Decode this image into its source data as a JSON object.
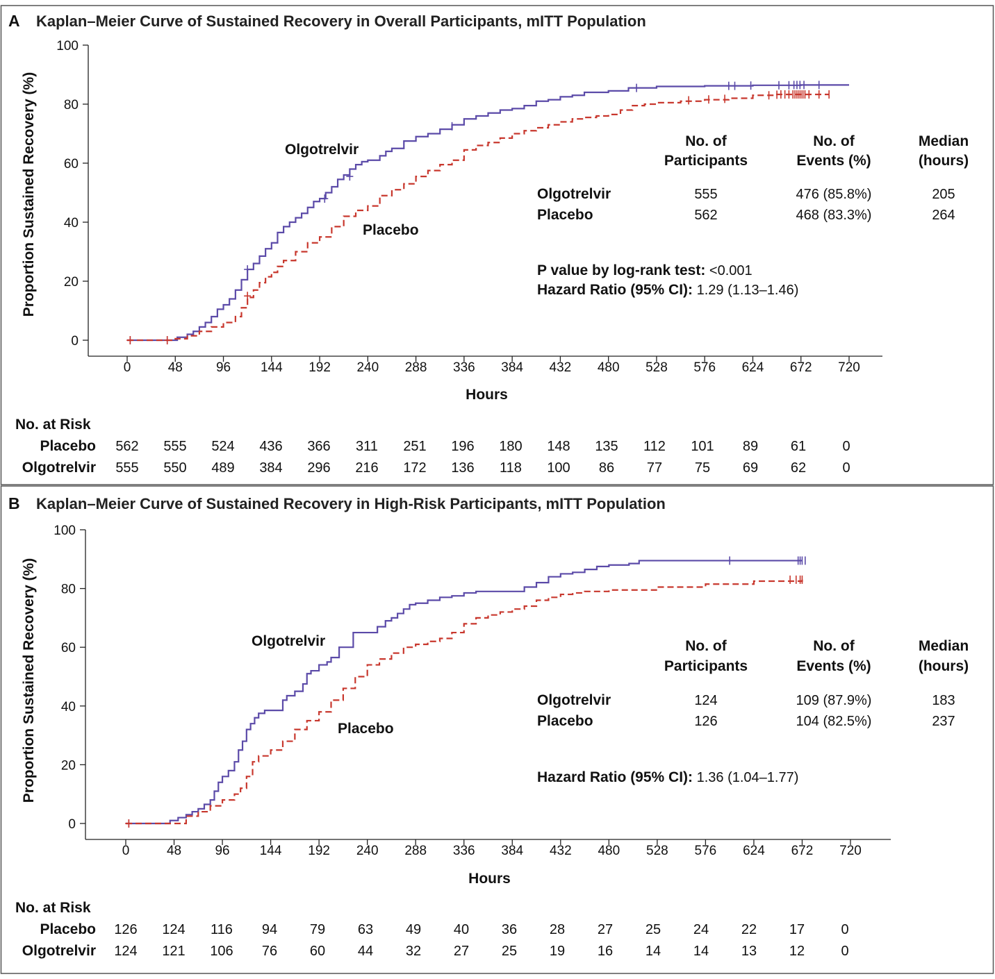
{
  "colors": {
    "olgotrelvir": "#5b4aa8",
    "placebo": "#c8372d",
    "frame": "#555555"
  },
  "chart_data": [
    {
      "type": "line",
      "panel_letter": "A",
      "title": "Kaplan–Meier Curve of Sustained Recovery in Overall Participants, mITT Population",
      "xlabel": "Hours",
      "ylabel": "Proportion Sustained Recovery (%)",
      "xlim": [
        0,
        720
      ],
      "ylim": [
        0,
        100
      ],
      "xticks": [
        0,
        48,
        96,
        144,
        192,
        240,
        288,
        336,
        384,
        432,
        480,
        528,
        576,
        624,
        672,
        720
      ],
      "yticks": [
        0,
        20,
        40,
        60,
        80,
        100
      ],
      "grid": false,
      "series": [
        {
          "name": "Olgotrelvir",
          "style": "solid",
          "x": [
            0,
            40,
            50,
            60,
            66,
            72,
            78,
            84,
            90,
            96,
            102,
            108,
            114,
            120,
            126,
            132,
            138,
            144,
            150,
            156,
            162,
            168,
            174,
            180,
            186,
            192,
            198,
            204,
            210,
            216,
            222,
            228,
            234,
            240,
            252,
            258,
            264,
            276,
            288,
            300,
            312,
            324,
            336,
            348,
            360,
            372,
            384,
            396,
            408,
            420,
            432,
            444,
            456,
            480,
            500,
            528,
            576,
            624,
            672,
            720
          ],
          "y": [
            0,
            0,
            1,
            2,
            3,
            4.5,
            6,
            8,
            10.5,
            12,
            14,
            17,
            20.5,
            24,
            26,
            28.5,
            31,
            33,
            36.5,
            38.5,
            40,
            41.5,
            43,
            45,
            47,
            48,
            50,
            52,
            54.5,
            56,
            58,
            59.5,
            60.5,
            61,
            62.5,
            64,
            65,
            67.5,
            69,
            70,
            71.5,
            73,
            75,
            76,
            77,
            78,
            78.5,
            79.5,
            81,
            81.5,
            82.5,
            83,
            84,
            84.5,
            85.5,
            86,
            86.2,
            86.4,
            86.5,
            86.5
          ],
          "censor_x": [
            3,
            40,
            120,
            197,
            222,
            324,
            508,
            600,
            606,
            622,
            650,
            660,
            665,
            668,
            671,
            675,
            690
          ],
          "censor_y": [
            0,
            0,
            24,
            48,
            55.5,
            72.5,
            85.5,
            86.2,
            86.2,
            86.3,
            86.4,
            86.4,
            86.5,
            86.5,
            86.5,
            86.5,
            86.5
          ]
        },
        {
          "name": "Placebo",
          "style": "dashed",
          "x": [
            0,
            40,
            48,
            60,
            72,
            84,
            96,
            108,
            114,
            120,
            126,
            132,
            138,
            144,
            150,
            156,
            168,
            180,
            192,
            204,
            216,
            228,
            240,
            252,
            264,
            276,
            288,
            300,
            312,
            324,
            336,
            348,
            360,
            372,
            384,
            396,
            408,
            420,
            432,
            444,
            456,
            468,
            480,
            492,
            504,
            516,
            528,
            552,
            576,
            600,
            624,
            648,
            672,
            700
          ],
          "y": [
            0,
            0,
            0.5,
            1.5,
            3,
            4.5,
            6,
            8,
            11,
            14.5,
            17,
            19.5,
            21.5,
            23,
            25,
            27,
            30,
            33,
            35,
            38.5,
            42,
            44,
            45.5,
            49,
            51,
            53,
            55.5,
            57.5,
            59.5,
            61,
            64.5,
            66,
            67,
            68.5,
            70,
            71,
            72,
            73,
            74,
            75,
            75.5,
            76,
            76.5,
            78,
            79.5,
            80,
            80.5,
            81,
            81.5,
            82,
            83,
            83.3,
            83.3,
            83.3
          ],
          "censor_x": [
            3,
            40,
            120,
            560,
            580,
            596,
            640,
            648,
            652,
            656,
            660,
            664,
            666,
            668,
            670,
            672,
            674,
            676,
            680,
            690,
            700
          ],
          "censor_y": [
            0,
            0,
            15,
            81.3,
            81.6,
            81.8,
            83,
            83.2,
            83.3,
            83.3,
            83.3,
            83.3,
            83.3,
            83.3,
            83.3,
            83.3,
            83.3,
            83.3,
            83.3,
            83.3,
            83.3
          ]
        }
      ],
      "curve_labels": {
        "olgotrelvir": "Olgotrelvir",
        "placebo": "Placebo"
      },
      "summary_table": {
        "headers": [
          "No. of\nParticipants",
          "No. of\nEvents (%)",
          "Median\n(hours)"
        ],
        "rows": [
          {
            "group": "Olgotrelvir",
            "participants": "555",
            "events": "476 (85.8%)",
            "median": "205"
          },
          {
            "group": "Placebo",
            "participants": "562",
            "events": "468 (83.3%)",
            "median": "264"
          }
        ]
      },
      "stats": [
        {
          "label": "P value by log-rank test:",
          "value": "<0.001"
        },
        {
          "label": "Hazard Ratio (95% CI):",
          "value": "1.29 (1.13–1.46)"
        }
      ],
      "risk_table": {
        "title": "No. at Risk",
        "rows": [
          {
            "group": "Placebo",
            "values": [
              "562",
              "555",
              "524",
              "436",
              "366",
              "311",
              "251",
              "196",
              "180",
              "148",
              "135",
              "112",
              "101",
              "89",
              "61",
              "0"
            ]
          },
          {
            "group": "Olgotrelvir",
            "values": [
              "555",
              "550",
              "489",
              "384",
              "296",
              "216",
              "172",
              "136",
              "118",
              "100",
              "86",
              "77",
              "75",
              "69",
              "62",
              "0"
            ]
          }
        ]
      }
    },
    {
      "type": "line",
      "panel_letter": "B",
      "title": "Kaplan–Meier Curve of Sustained Recovery in High-Risk Participants, mITT Population",
      "xlabel": "Hours",
      "ylabel": "Proportion Sustained Recovery (%)",
      "xlim": [
        0,
        720
      ],
      "ylim": [
        0,
        100
      ],
      "xticks": [
        0,
        48,
        96,
        144,
        192,
        240,
        288,
        336,
        384,
        432,
        480,
        528,
        576,
        624,
        672,
        720
      ],
      "yticks": [
        0,
        20,
        40,
        60,
        80,
        100
      ],
      "grid": false,
      "series": [
        {
          "name": "Olgotrelvir",
          "style": "solid",
          "x": [
            0,
            36,
            44,
            52,
            60,
            66,
            72,
            78,
            84,
            88,
            92,
            96,
            102,
            108,
            112,
            116,
            120,
            124,
            128,
            132,
            138,
            144,
            156,
            160,
            168,
            176,
            180,
            184,
            192,
            200,
            204,
            212,
            216,
            226,
            232,
            240,
            250,
            258,
            264,
            270,
            276,
            282,
            288,
            300,
            312,
            324,
            336,
            348,
            360,
            372,
            384,
            396,
            408,
            420,
            432,
            444,
            456,
            468,
            480,
            500,
            510,
            528,
            576,
            624,
            672
          ],
          "y": [
            0,
            0,
            1,
            2,
            3,
            4,
            5,
            6.5,
            8,
            11,
            14,
            16,
            18,
            21,
            25,
            28,
            32,
            34,
            36,
            37.5,
            38.5,
            38.5,
            42,
            43.5,
            45,
            47.5,
            51,
            52,
            54,
            55,
            56.5,
            60,
            60,
            65,
            65,
            65,
            67,
            69,
            70,
            71.5,
            73,
            74.5,
            75,
            76,
            77,
            77.5,
            78.5,
            79,
            79,
            79,
            79,
            80.5,
            82,
            84,
            85,
            85.5,
            86.5,
            87.5,
            88,
            88.5,
            89.5,
            89.5,
            89.5,
            89.5,
            89.5
          ],
          "censor_x": [
            3,
            600,
            668,
            670,
            672,
            675
          ],
          "censor_y": [
            0,
            89.5,
            89.5,
            89.5,
            89.5,
            89.5
          ]
        },
        {
          "name": "Placebo",
          "style": "dashed",
          "x": [
            0,
            48,
            60,
            72,
            84,
            96,
            108,
            114,
            120,
            126,
            132,
            144,
            156,
            168,
            180,
            192,
            204,
            216,
            228,
            240,
            252,
            264,
            276,
            288,
            300,
            312,
            324,
            336,
            348,
            360,
            372,
            384,
            396,
            408,
            420,
            432,
            444,
            456,
            468,
            480,
            500,
            528,
            576,
            624,
            672
          ],
          "y": [
            0,
            0,
            2.5,
            4,
            6,
            8,
            10,
            12,
            16,
            21,
            23,
            25,
            28,
            32,
            35,
            38,
            42,
            46,
            50,
            54,
            56,
            58,
            60,
            61,
            62,
            63,
            65,
            68,
            70,
            71,
            72,
            73,
            74,
            76,
            77,
            78,
            78.5,
            79,
            79,
            79.5,
            79.5,
            80.5,
            81.5,
            82.5,
            83
          ],
          "censor_x": [
            3,
            660,
            666,
            670,
            672
          ],
          "censor_y": [
            0,
            83,
            83,
            83,
            83
          ]
        }
      ],
      "curve_labels": {
        "olgotrelvir": "Olgotrelvir",
        "placebo": "Placebo"
      },
      "summary_table": {
        "headers": [
          "No. of\nParticipants",
          "No. of\nEvents (%)",
          "Median\n(hours)"
        ],
        "rows": [
          {
            "group": "Olgotrelvir",
            "participants": "124",
            "events": "109 (87.9%)",
            "median": "183"
          },
          {
            "group": "Placebo",
            "participants": "126",
            "events": "104 (82.5%)",
            "median": "237"
          }
        ]
      },
      "stats": [
        {
          "label": "Hazard Ratio (95% CI):",
          "value": "1.36 (1.04–1.77)"
        }
      ],
      "risk_table": {
        "title": "No. at Risk",
        "rows": [
          {
            "group": "Placebo",
            "values": [
              "126",
              "124",
              "116",
              "94",
              "79",
              "63",
              "49",
              "40",
              "36",
              "28",
              "27",
              "25",
              "24",
              "22",
              "17",
              "0"
            ]
          },
          {
            "group": "Olgotrelvir",
            "values": [
              "124",
              "121",
              "106",
              "76",
              "60",
              "44",
              "32",
              "27",
              "25",
              "19",
              "16",
              "14",
              "14",
              "13",
              "12",
              "0"
            ]
          }
        ]
      }
    }
  ]
}
